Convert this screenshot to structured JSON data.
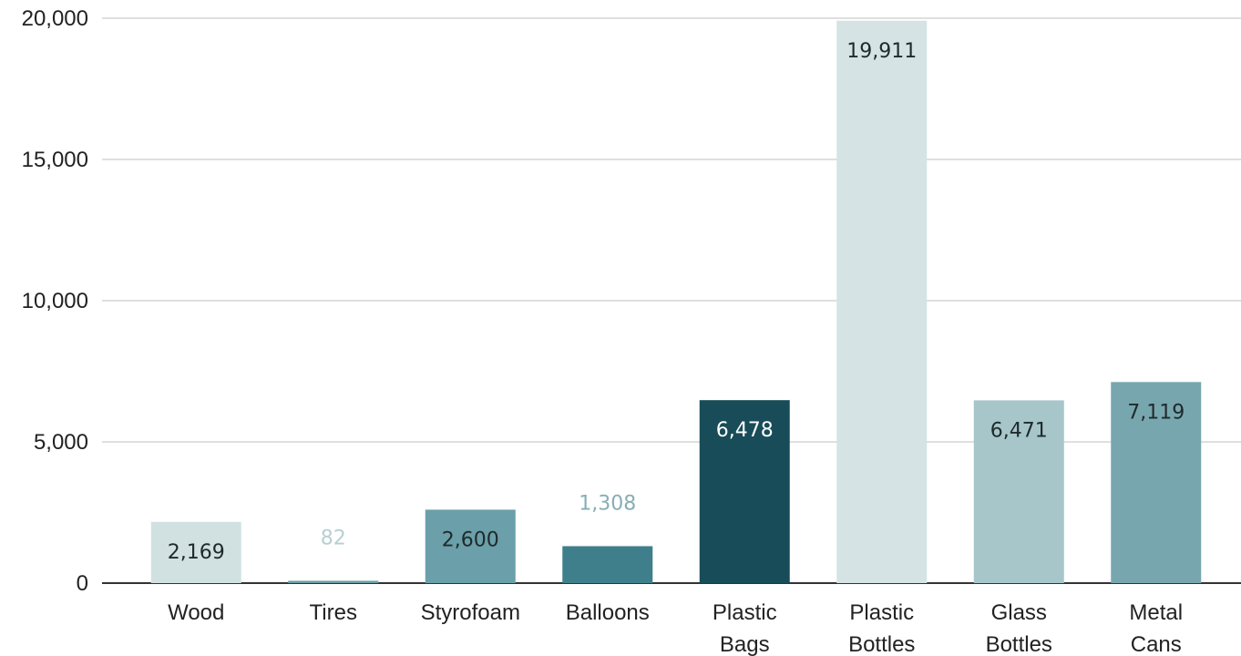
{
  "chart_data": {
    "type": "bar",
    "title": "",
    "xlabel": "",
    "ylabel": "",
    "ylim": [
      0,
      20000
    ],
    "y_ticks": [
      0,
      5000,
      10000,
      15000,
      20000
    ],
    "y_tick_labels": [
      "0",
      "5,000",
      "10,000",
      "15,000",
      "20,000"
    ],
    "grid": true,
    "legend": "none",
    "categories": [
      [
        "Wood"
      ],
      [
        "Tires"
      ],
      [
        "Styrofoam"
      ],
      [
        "Balloons"
      ],
      [
        "Plastic",
        "Bags"
      ],
      [
        "Plastic",
        "Bottles"
      ],
      [
        "Glass",
        "Bottles"
      ],
      [
        "Metal",
        "Cans"
      ]
    ],
    "values": [
      2169,
      82,
      2600,
      1308,
      6478,
      19911,
      6471,
      7119
    ],
    "value_labels": [
      "2,169",
      "82",
      "2,600",
      "1,308",
      "6,478",
      "19,911",
      "6,471",
      "7,119"
    ],
    "bar_colors": [
      "#d1e1e2",
      "#6e9ea6",
      "#6b9fa9",
      "#3f7f8b",
      "#184c58",
      "#d5e3e4",
      "#a6c6ca",
      "#77a6ae"
    ],
    "value_label_colors": [
      "#1f2a2c",
      "#b7cfd2",
      "#1f2a2c",
      "#87aeb4",
      "#ffffff",
      "#1f2a2c",
      "#1f2a2c",
      "#1f2a2c"
    ],
    "value_label_inside": [
      true,
      false,
      true,
      false,
      true,
      true,
      true,
      true
    ],
    "gridline_color": "#cccccc",
    "baseline_color": "#333333"
  }
}
